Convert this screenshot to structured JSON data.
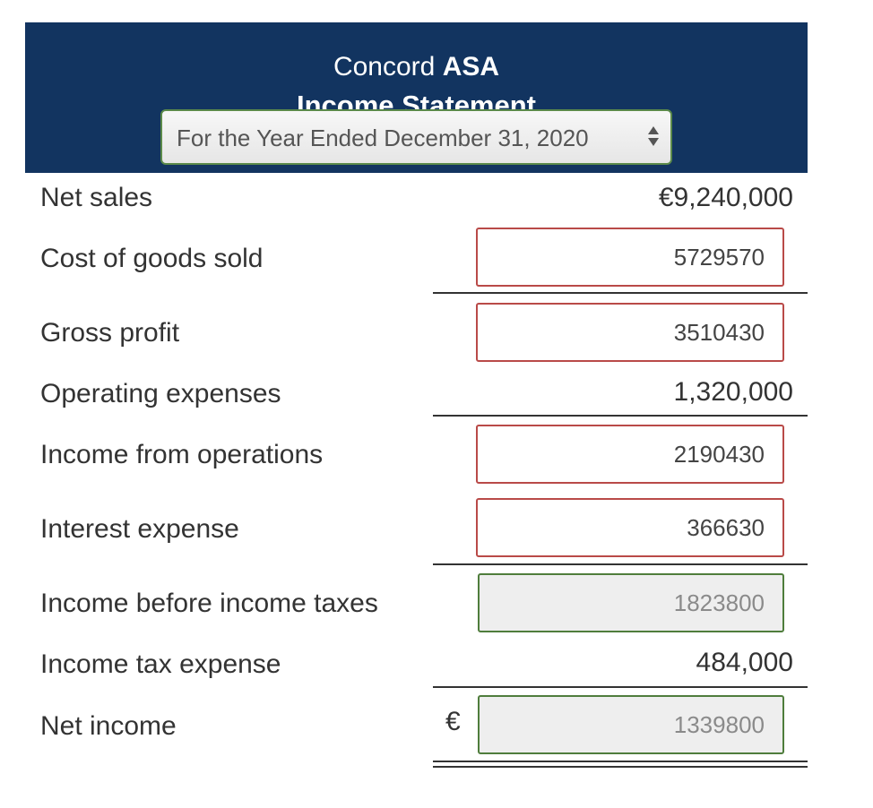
{
  "header": {
    "company_name": "Concord",
    "company_suffix": "ASA",
    "title": "Income Statement",
    "period_selected": "For the Year Ended December 31, 2020",
    "background_color": "#123460"
  },
  "rows": {
    "net_sales": {
      "label": "Net sales",
      "amount": "€9,240,000"
    },
    "cogs": {
      "label": "Cost of goods sold",
      "value": "5729570"
    },
    "gross_profit": {
      "label": "Gross profit",
      "value": "3510430"
    },
    "operating_expenses": {
      "label": "Operating expenses",
      "amount": "1,320,000"
    },
    "income_from_operations": {
      "label": "Income from operations",
      "value": "2190430"
    },
    "interest_expense": {
      "label": "Interest expense",
      "value": "366630"
    },
    "income_before_taxes": {
      "label": "Income before income taxes",
      "value": "1823800"
    },
    "income_tax_expense": {
      "label": "Income tax expense",
      "amount": "484,000"
    },
    "net_income": {
      "label": "Net income",
      "currency": "€",
      "value": "1339800"
    }
  },
  "colors": {
    "error_border": "#b94a48",
    "locked_border": "#4f7d3c"
  }
}
